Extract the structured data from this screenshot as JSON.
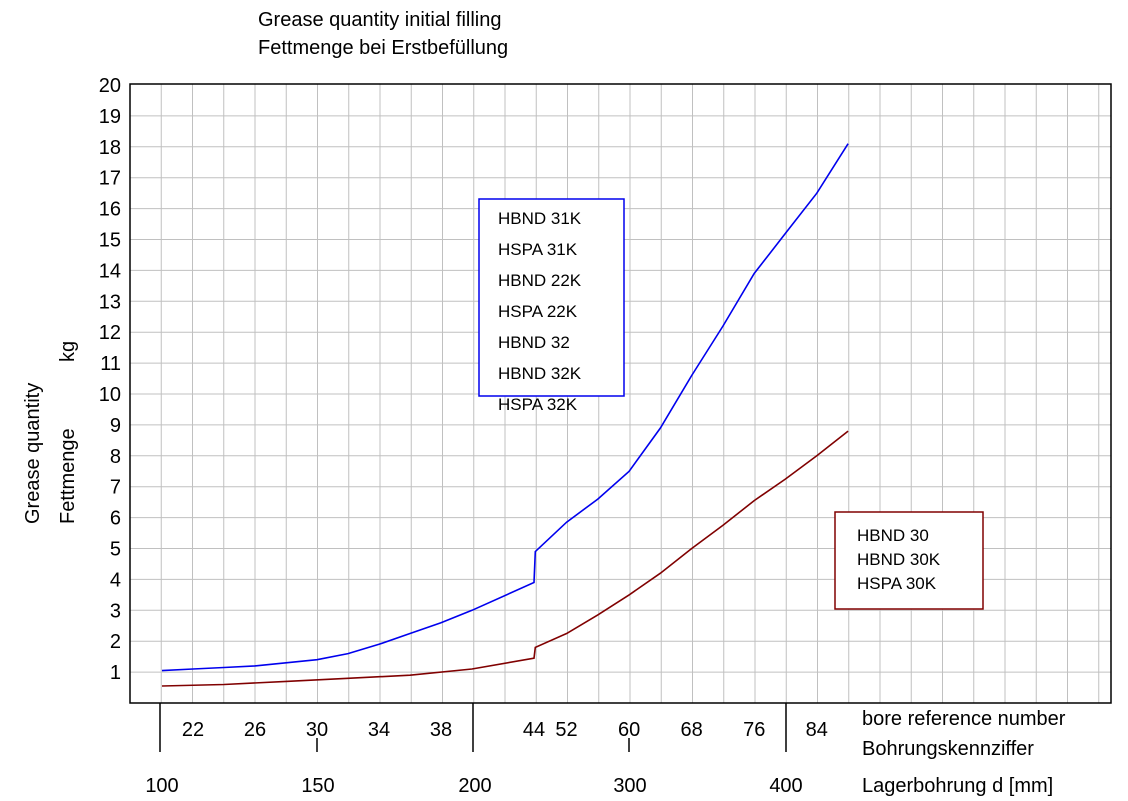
{
  "chart_data": {
    "type": "line",
    "title": "Grease quantity initial filling",
    "subtitle": "Fettmenge bei Erstbefüllung",
    "ylabel": "Grease quantity",
    "ylabel_de": "Fettmenge",
    "yunit": "kg",
    "ylim": [
      0,
      20
    ],
    "yticks": [
      "1",
      "2",
      "3",
      "4",
      "5",
      "6",
      "7",
      "8",
      "9",
      "10",
      "11",
      "12",
      "13",
      "14",
      "15",
      "16",
      "17",
      "18",
      "19",
      "20"
    ],
    "bore_reference_label": "bore reference number",
    "bore_reference_label_de": "Bohrungskennziffer",
    "bore_reference_ticks": [
      "22",
      "26",
      "30",
      "34",
      "38",
      "44",
      "52",
      "60",
      "68",
      "76",
      "84"
    ],
    "bore_diameter_label": "Lagerbohrung d [mm]",
    "bore_diameter_ticks": [
      "100",
      "150",
      "200",
      "300",
      "400"
    ],
    "grid": true,
    "series": [
      {
        "color": "#0000ee",
        "legend": [
          "HBND 31K",
          "HSPA 31K",
          "HBND 22K",
          "HSPA 22K",
          "HBND 32",
          "HBND 32K",
          "HSPA 32K"
        ],
        "x": [
          20,
          22,
          24,
          26,
          28,
          30,
          32,
          34,
          36,
          38,
          40,
          44,
          48,
          52,
          56,
          60,
          64,
          68,
          72,
          76,
          80,
          84,
          88
        ],
        "y": [
          1.05,
          1.1,
          1.15,
          1.2,
          1.3,
          1.4,
          1.6,
          1.9,
          2.25,
          2.6,
          3.0,
          3.9,
          4.9,
          5.85,
          6.6,
          7.5,
          8.9,
          10.6,
          12.2,
          13.9,
          15.2,
          16.5,
          18.1
        ]
      },
      {
        "color": "#800000",
        "legend": [
          "HBND 30",
          "HBND 30K",
          "HSPA 30K"
        ],
        "x": [
          20,
          24,
          28,
          32,
          36,
          40,
          44,
          48,
          52,
          56,
          60,
          64,
          68,
          72,
          76,
          80,
          84,
          88
        ],
        "y": [
          0.55,
          0.6,
          0.7,
          0.8,
          0.9,
          1.1,
          1.45,
          1.8,
          2.25,
          2.85,
          3.5,
          4.2,
          5.0,
          5.75,
          6.55,
          7.25,
          8.0,
          8.8
        ]
      }
    ]
  }
}
